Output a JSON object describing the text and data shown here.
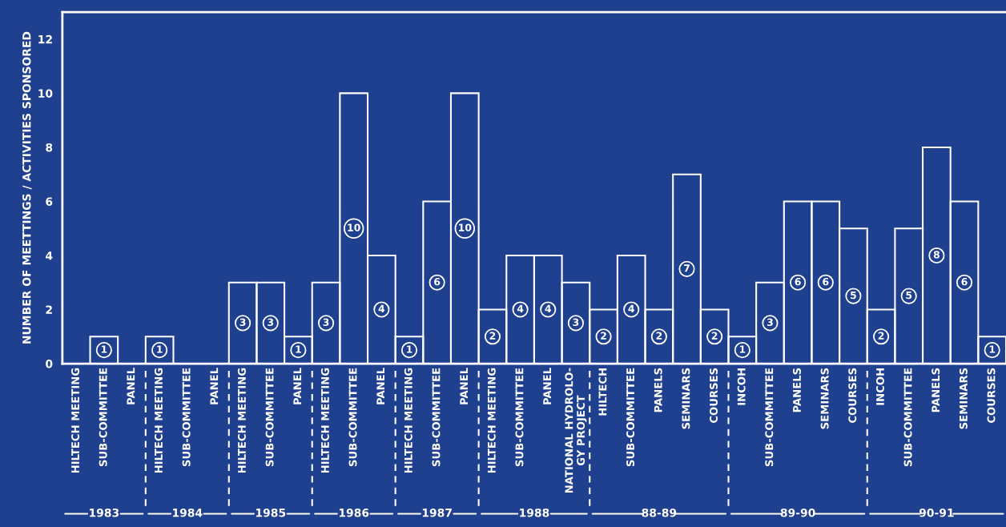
{
  "chart_data": {
    "type": "bar",
    "ylabel": "NUMBER OF MEETTINGS / ACTIVITIES SPONSORED",
    "categories": [
      "HILTECH MEETING",
      "SUB-COMMITTEE",
      "PANEL",
      "HILTECH MEETING",
      "SUB-COMMITTEE",
      "PANEL",
      "HILTECH MEETING",
      "SUB-COMMITTEE",
      "PANEL",
      "HILTECH MEETING",
      "SUB-COMMITTEE",
      "PANEL",
      "HILTECH MEETING",
      "SUB-COMMITTEE",
      "PANEL",
      "HILTECH MEETING",
      "SUB-COMMITTEE",
      "PANEL",
      "NATIONAL HYDROLO-\nGY PROJECT",
      "HILTECH",
      "SUB-COMMITTEE",
      "PANELS",
      "SEMINARS",
      "COURSES",
      "INCOH",
      "SUB-COMMITTEE",
      "PANELS",
      "SEMINARS",
      "COURSES",
      "INCOH",
      "SUB-COMMITTEE",
      "PANELS",
      "SEMINARS",
      "COURSES"
    ],
    "values": [
      0,
      1,
      0,
      1,
      0,
      0,
      3,
      3,
      1,
      3,
      10,
      4,
      1,
      6,
      10,
      2,
      4,
      4,
      3,
      2,
      4,
      2,
      7,
      2,
      1,
      3,
      6,
      6,
      5,
      2,
      5,
      8,
      6,
      1
    ],
    "value_labels": [
      null,
      "1",
      null,
      "1",
      null,
      null,
      "3",
      "3",
      "1",
      "3",
      "10",
      "4",
      "1",
      "6",
      "10",
      "2",
      "4",
      "4",
      "3",
      "2",
      "4",
      "2",
      "7",
      "2",
      "1",
      "3",
      "6",
      "6",
      "5",
      "2",
      "5",
      "8",
      "6",
      "1"
    ],
    "color": "#ffffff",
    "ylim": [
      0,
      13
    ],
    "yticks": [
      0,
      2,
      4,
      6,
      8,
      10,
      12
    ],
    "grid": false,
    "annotations": [
      "1983",
      "1984",
      "1985",
      "1986",
      "1987",
      "1988",
      "88-89",
      "89-90",
      "90-91"
    ]
  }
}
